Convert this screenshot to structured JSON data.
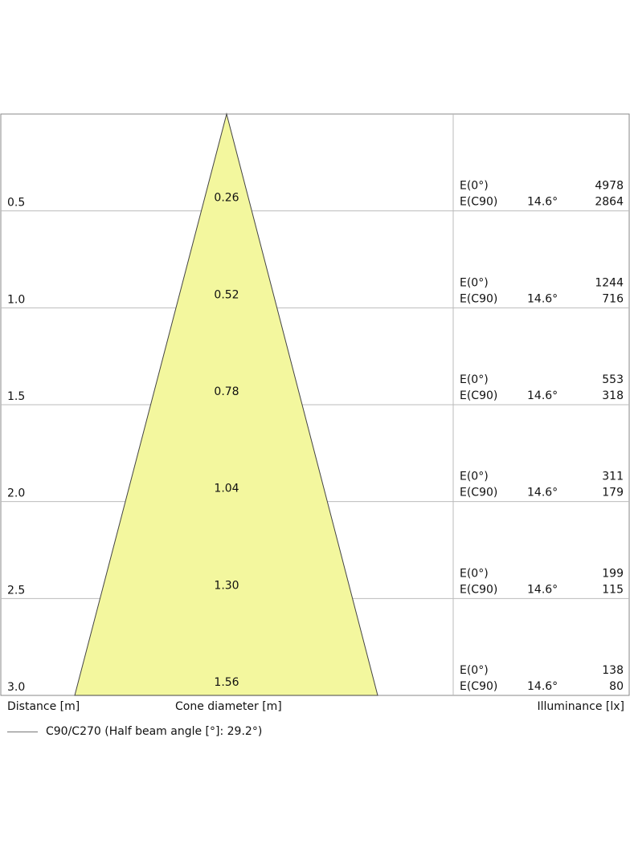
{
  "colors": {
    "cone_fill": "#f3f79e",
    "cone_stroke": "#444444",
    "grid": "#bbbbbb",
    "frame": "#888888",
    "text": "#111111"
  },
  "rows": [
    {
      "distance": "0.5",
      "diameter": "0.26",
      "e0_label": "E(0°)",
      "e0_value": "4978",
      "ec90_label": "E(C90)",
      "angle": "14.6°",
      "ec90_value": "2864"
    },
    {
      "distance": "1.0",
      "diameter": "0.52",
      "e0_label": "E(0°)",
      "e0_value": "1244",
      "ec90_label": "E(C90)",
      "angle": "14.6°",
      "ec90_value": "716"
    },
    {
      "distance": "1.5",
      "diameter": "0.78",
      "e0_label": "E(0°)",
      "e0_value": "553",
      "ec90_label": "E(C90)",
      "angle": "14.6°",
      "ec90_value": "318"
    },
    {
      "distance": "2.0",
      "diameter": "1.04",
      "e0_label": "E(0°)",
      "e0_value": "311",
      "ec90_label": "E(C90)",
      "angle": "14.6°",
      "ec90_value": "179"
    },
    {
      "distance": "2.5",
      "diameter": "1.30",
      "e0_label": "E(0°)",
      "e0_value": "199",
      "ec90_label": "E(C90)",
      "angle": "14.6°",
      "ec90_value": "115"
    },
    {
      "distance": "3.0",
      "diameter": "1.56",
      "e0_label": "E(0°)",
      "e0_value": "138",
      "ec90_label": "E(C90)",
      "angle": "14.6°",
      "ec90_value": "80"
    }
  ],
  "footer": {
    "distance_label": "Distance [m]",
    "cone_label": "Cone diameter [m]",
    "illuminance_label": "Illuminance [lx]"
  },
  "legend": {
    "text": "C90/C270 (Half beam angle [°]: 29.2°)"
  }
}
